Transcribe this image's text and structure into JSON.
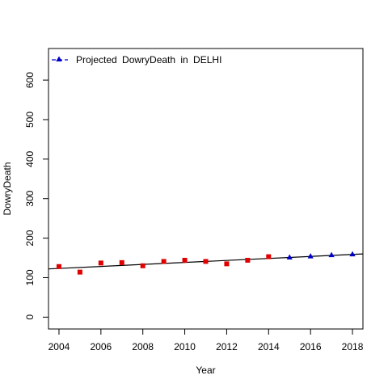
{
  "chart_data": {
    "type": "scatter",
    "xlabel": "Year",
    "ylabel": "DowryDeath",
    "xlim": [
      2003.5,
      2018.5
    ],
    "ylim": [
      -30,
      680
    ],
    "x_ticks": [
      2004,
      2006,
      2008,
      2010,
      2012,
      2014,
      2016,
      2018
    ],
    "y_ticks": [
      0,
      100,
      200,
      300,
      400,
      500,
      600
    ],
    "legend": {
      "placement": "top-left",
      "label": "Projected DowryDeath in DELHI"
    },
    "series": [
      {
        "marker": "square",
        "color": "#e00000",
        "x": [
          2004,
          2005,
          2006,
          2007,
          2008,
          2009,
          2010,
          2011,
          2012,
          2013,
          2014
        ],
        "y": [
          128,
          114,
          137,
          138,
          130,
          141,
          144,
          141,
          135,
          144,
          153
        ]
      },
      {
        "name": "Projected DowryDeath in DELHI",
        "marker": "triangle",
        "color": "#0000cc",
        "x": [
          2015,
          2016,
          2017,
          2018
        ],
        "y": [
          151,
          154,
          157,
          159
        ]
      }
    ],
    "trend_line": {
      "color": "#000000",
      "x": [
        2003.5,
        2018.5
      ],
      "y": [
        122,
        160
      ]
    }
  }
}
